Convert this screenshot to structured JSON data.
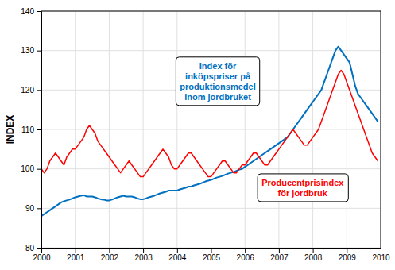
{
  "chart_data": {
    "type": "line",
    "y_label": "INDEX",
    "xlim": [
      2000.0,
      2010.0
    ],
    "ylim": [
      80,
      140
    ],
    "xticks": [
      2000,
      2001,
      2002,
      2003,
      2004,
      2005,
      2006,
      2007,
      2008,
      2009,
      2010
    ],
    "yticks": [
      80,
      90,
      100,
      110,
      120,
      130,
      140
    ],
    "grid": true,
    "x": [
      2000.0,
      2000.0833333333333,
      2000.1666666666667,
      2000.25,
      2000.3333333333333,
      2000.4166666666667,
      2000.5,
      2000.5833333333333,
      2000.6666666666667,
      2000.75,
      2000.8333333333333,
      2000.9166666666667,
      2001.0,
      2001.0833333333333,
      2001.1666666666667,
      2001.25,
      2001.3333333333333,
      2001.4166666666667,
      2001.5,
      2001.5833333333333,
      2001.6666666666667,
      2001.75,
      2001.8333333333333,
      2001.9166666666667,
      2002.0,
      2002.0833333333333,
      2002.1666666666667,
      2002.25,
      2002.3333333333333,
      2002.4166666666667,
      2002.5,
      2002.5833333333333,
      2002.6666666666667,
      2002.75,
      2002.8333333333333,
      2002.9166666666667,
      2003.0,
      2003.0833333333333,
      2003.1666666666667,
      2003.25,
      2003.3333333333333,
      2003.4166666666667,
      2003.5,
      2003.5833333333333,
      2003.6666666666667,
      2003.75,
      2003.8333333333333,
      2003.9166666666667,
      2004.0,
      2004.0833333333333,
      2004.1666666666667,
      2004.25,
      2004.3333333333333,
      2004.4166666666667,
      2004.5,
      2004.5833333333333,
      2004.6666666666667,
      2004.75,
      2004.8333333333333,
      2004.9166666666667,
      2005.0,
      2005.0833333333333,
      2005.1666666666667,
      2005.25,
      2005.3333333333333,
      2005.4166666666667,
      2005.5,
      2005.5833333333333,
      2005.6666666666667,
      2005.75,
      2005.8333333333333,
      2005.9166666666667,
      2006.0,
      2006.0833333333333,
      2006.1666666666667,
      2006.25,
      2006.3333333333333,
      2006.4166666666667,
      2006.5,
      2006.5833333333333,
      2006.6666666666667,
      2006.75,
      2006.8333333333333,
      2006.9166666666667,
      2007.0,
      2007.0833333333333,
      2007.1666666666667,
      2007.25,
      2007.3333333333333,
      2007.4166666666667,
      2007.5,
      2007.5833333333333,
      2007.6666666666667,
      2007.75,
      2007.8333333333333,
      2007.9166666666667,
      2008.0,
      2008.0833333333333,
      2008.1666666666667,
      2008.25,
      2008.3333333333333,
      2008.4166666666667,
      2008.5,
      2008.5833333333333,
      2008.6666666666667,
      2008.75,
      2008.8333333333333,
      2008.9166666666667,
      2009.0,
      2009.0833333333333,
      2009.1666666666667,
      2009.25,
      2009.3333333333333,
      2009.4166666666667,
      2009.5,
      2009.5833333333333,
      2009.6666666666667,
      2009.75,
      2009.8333333333333,
      2009.9166666666667
    ],
    "series": [
      {
        "color": "#0070C0",
        "values": [
          88.0,
          88.5,
          89.0,
          89.5,
          90.0,
          90.5,
          91.0,
          91.5,
          91.8,
          92.0,
          92.2,
          92.5,
          92.8,
          93.0,
          93.2,
          93.3,
          93.0,
          93.0,
          93.0,
          92.8,
          92.5,
          92.3,
          92.2,
          92.0,
          92.0,
          92.2,
          92.5,
          92.8,
          93.0,
          93.2,
          93.0,
          93.0,
          93.0,
          92.8,
          92.5,
          92.3,
          92.3,
          92.5,
          92.8,
          93.0,
          93.2,
          93.5,
          93.8,
          94.0,
          94.2,
          94.5,
          94.5,
          94.5,
          94.5,
          94.8,
          95.0,
          95.2,
          95.5,
          95.5,
          95.8,
          96.0,
          96.2,
          96.5,
          96.8,
          97.0,
          97.2,
          97.5,
          97.8,
          98.0,
          98.2,
          98.5,
          98.8,
          99.0,
          99.2,
          99.5,
          99.8,
          100.0,
          100.5,
          101.0,
          101.5,
          102.0,
          102.5,
          103.0,
          103.5,
          104.0,
          104.5,
          105.0,
          105.5,
          106.0,
          106.5,
          107.0,
          107.5,
          108.0,
          109.0,
          110.0,
          111.0,
          112.0,
          113.0,
          114.0,
          115.0,
          116.0,
          117.0,
          118.0,
          119.0,
          120.0,
          122.0,
          124.0,
          126.0,
          128.0,
          130.0,
          131.0,
          130.0,
          129.0,
          128.0,
          127.0,
          124.0,
          121.0,
          119.0,
          118.0,
          117.0,
          116.0,
          115.0,
          114.0,
          113.0,
          112.0
        ]
      },
      {
        "color": "#FF0000",
        "values": [
          100.0,
          99.0,
          100.0,
          102.0,
          103.0,
          104.0,
          103.0,
          102.0,
          101.0,
          103.0,
          104.0,
          105.0,
          105.0,
          106.0,
          107.0,
          108.0,
          110.0,
          111.0,
          110.0,
          109.0,
          107.0,
          106.0,
          105.0,
          104.0,
          103.0,
          102.0,
          101.0,
          100.0,
          99.0,
          100.0,
          101.0,
          102.0,
          101.0,
          100.0,
          99.0,
          98.0,
          98.0,
          99.0,
          100.0,
          101.0,
          102.0,
          103.0,
          104.0,
          105.0,
          104.0,
          103.0,
          101.0,
          100.0,
          100.0,
          101.0,
          102.0,
          103.0,
          104.0,
          104.0,
          103.0,
          102.0,
          101.0,
          100.0,
          99.0,
          98.0,
          98.0,
          99.0,
          100.0,
          101.0,
          102.0,
          102.0,
          101.0,
          100.0,
          99.0,
          99.0,
          100.0,
          101.0,
          101.0,
          102.0,
          103.0,
          104.0,
          104.0,
          103.0,
          102.0,
          101.0,
          101.0,
          102.0,
          103.0,
          104.0,
          105.0,
          106.0,
          107.0,
          108.0,
          109.0,
          110.0,
          109.0,
          108.0,
          107.0,
          106.0,
          106.0,
          107.0,
          108.0,
          109.0,
          110.0,
          112.0,
          114.0,
          116.0,
          118.0,
          120.0,
          122.0,
          124.0,
          125.0,
          124.0,
          122.0,
          120.0,
          118.0,
          116.0,
          114.0,
          112.0,
          110.0,
          108.0,
          106.0,
          104.0,
          103.0,
          102.0
        ]
      }
    ],
    "annotations": [
      {
        "lines": [
          "Index för",
          "inköpspriser på",
          "produktionsmedel",
          "inom jordbruket"
        ],
        "color": "#0070C0"
      },
      {
        "lines": [
          "Producentprisindex",
          "för jordbruk"
        ],
        "color": "#FF0000"
      }
    ]
  }
}
